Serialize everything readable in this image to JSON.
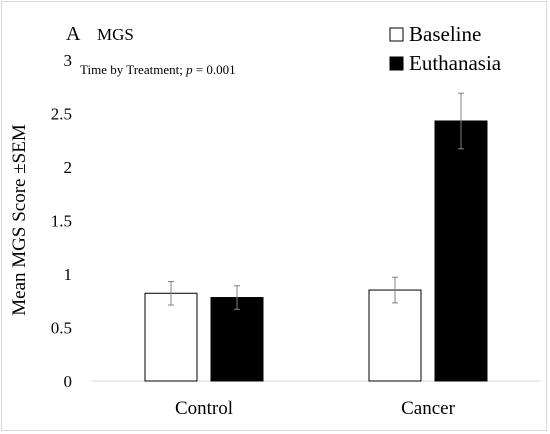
{
  "chart_data": {
    "type": "bar",
    "panel_letter": "A",
    "title": "MGS",
    "annotation_prefix": "Time by Treatment; ",
    "annotation_p": "p",
    "annotation_suffix": " = 0.001",
    "ylabel": "Mean MGS Score ±SEM",
    "xlabel": "",
    "ylim": [
      0,
      3
    ],
    "yticks": [
      0,
      0.5,
      1,
      1.5,
      2,
      2.5,
      3
    ],
    "ytick_labels": [
      "0",
      "0.5",
      "1",
      "1.5",
      "2",
      "2.5",
      "3"
    ],
    "categories": [
      "Control",
      "Cancer"
    ],
    "series": [
      {
        "name": "Baseline",
        "color": "#ffffff",
        "stroke": "#000000",
        "values": [
          0.82,
          0.85
        ],
        "sem": [
          0.11,
          0.12
        ]
      },
      {
        "name": "Euthanasia",
        "color": "#000000",
        "stroke": "#000000",
        "values": [
          0.78,
          2.43
        ],
        "sem": [
          0.11,
          0.26
        ]
      }
    ],
    "legend_position": "top-right",
    "grid": false
  }
}
